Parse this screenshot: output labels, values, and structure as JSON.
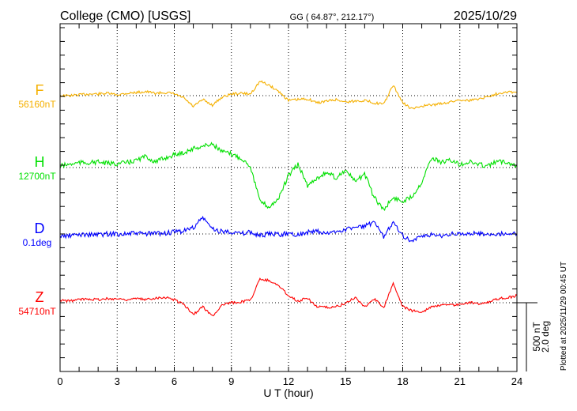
{
  "header": {
    "station": "College (CMO)  [USGS]",
    "coords": "GG ( 64.87°, 212.17°)",
    "date": "2025/10/29"
  },
  "plotted_note": "Plotted at 2025/11/29 00:45 UT",
  "scale": {
    "nt": "500 nT",
    "deg": "2.0 deg"
  },
  "chart_data": {
    "type": "line",
    "xlabel": "U T (hour)",
    "xlim": [
      0,
      24
    ],
    "xticks": [
      "0",
      "3",
      "6",
      "9",
      "12",
      "15",
      "18",
      "21",
      "24"
    ],
    "grid": true,
    "x": [
      0,
      0.5,
      1,
      1.5,
      2,
      2.5,
      3,
      3.5,
      4,
      4.5,
      5,
      5.5,
      6,
      6.5,
      7,
      7.5,
      8,
      8.5,
      9,
      9.5,
      10,
      10.5,
      11,
      11.5,
      12,
      12.5,
      13,
      13.5,
      14,
      14.5,
      15,
      15.5,
      16,
      16.5,
      17,
      17.5,
      18,
      18.5,
      19,
      19.5,
      20,
      20.5,
      21,
      21.5,
      22,
      22.5,
      23,
      23.5,
      24
    ],
    "series": [
      {
        "name": "F",
        "baseline_label": "56160nT",
        "unit": "nT",
        "color": "#f5b000",
        "values": [
          0,
          0,
          6,
          12,
          12,
          17,
          6,
          17,
          23,
          29,
          17,
          23,
          12,
          -17,
          -80,
          -29,
          -69,
          -12,
          12,
          17,
          12,
          104,
          75,
          29,
          -35,
          -29,
          -23,
          -52,
          -40,
          -29,
          -46,
          -40,
          -35,
          -52,
          -63,
          75,
          -52,
          -98,
          -75,
          -69,
          -58,
          -46,
          -29,
          -35,
          -23,
          -6,
          17,
          29,
          23
        ]
      },
      {
        "name": "H",
        "baseline_label": "12700nT",
        "unit": "nT",
        "color": "#00e000",
        "values": [
          12,
          23,
          35,
          35,
          40,
          29,
          29,
          35,
          52,
          81,
          40,
          69,
          92,
          109,
          138,
          155,
          173,
          115,
          98,
          69,
          12,
          -247,
          -288,
          -219,
          -58,
          23,
          -132,
          -75,
          -35,
          -75,
          -17,
          -104,
          -46,
          -219,
          -305,
          -219,
          -247,
          -207,
          -104,
          69,
          40,
          52,
          23,
          40,
          23,
          12,
          46,
          40,
          12
        ]
      },
      {
        "name": "D",
        "baseline_label": "0.1deg",
        "unit": "deg",
        "color": "#0000ff",
        "values": [
          -0.07,
          -0.05,
          -0.02,
          -0.02,
          -0.02,
          0,
          0,
          0,
          0.02,
          0,
          0.02,
          0.02,
          0.05,
          0.09,
          0.18,
          0.48,
          0.14,
          0.07,
          0.07,
          0,
          0.05,
          -0.05,
          0,
          -0.02,
          0.02,
          -0.02,
          0.05,
          0.07,
          0,
          0.07,
          0.14,
          0.18,
          0.23,
          0.32,
          -0.09,
          0.37,
          -0.05,
          -0.21,
          -0.09,
          -0.02,
          -0.05,
          0,
          -0.02,
          0.02,
          0,
          0,
          -0.02,
          0.02,
          0
        ]
      },
      {
        "name": "Z",
        "baseline_label": "54710nT",
        "unit": "nT",
        "color": "#ff0000",
        "values": [
          17,
          12,
          23,
          29,
          23,
          29,
          29,
          23,
          29,
          23,
          35,
          40,
          23,
          -12,
          -86,
          -29,
          -98,
          -17,
          0,
          6,
          17,
          173,
          161,
          121,
          52,
          12,
          35,
          -29,
          -35,
          -29,
          -6,
          40,
          -29,
          29,
          -40,
          144,
          -29,
          -58,
          -69,
          -29,
          -17,
          -17,
          -12,
          0,
          -6,
          6,
          29,
          35,
          52
        ]
      }
    ]
  }
}
